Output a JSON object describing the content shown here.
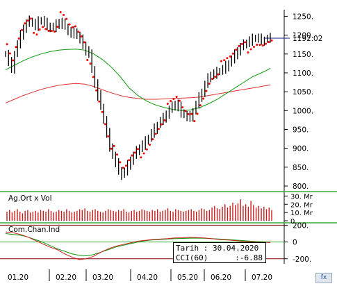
{
  "chart_data": {
    "type": "candlestick",
    "price": {
      "y_ticks": [
        "1250.",
        "1200.",
        "1150.",
        "1100.",
        "1050.",
        "1000.",
        "950.",
        "900.",
        "850.",
        "800."
      ],
      "y_range": [
        800,
        1260
      ],
      "last_price_label": "1192.02",
      "last_price": 1192.02,
      "close_series": [
        1150,
        1128,
        1112,
        1150,
        1175,
        1200,
        1220,
        1230,
        1238,
        1232,
        1225,
        1236,
        1240,
        1232,
        1225,
        1222,
        1218,
        1228,
        1235,
        1230,
        1222,
        1210,
        1205,
        1210,
        1198,
        1188,
        1175,
        1160,
        1148,
        1110,
        1072,
        1040,
        1010,
        975,
        940,
        905,
        880,
        860,
        842,
        830,
        838,
        855,
        870,
        880,
        892,
        902,
        910,
        918,
        928,
        940,
        952,
        962,
        972,
        980,
        992,
        1002,
        1010,
        1018,
        1010,
        995,
        988,
        982,
        985,
        998,
        1015,
        1035,
        1050,
        1068,
        1085,
        1095,
        1098,
        1102,
        1105,
        1110,
        1118,
        1125,
        1135,
        1148,
        1160,
        1168,
        1175,
        1180,
        1186,
        1190,
        1193,
        1190,
        1186,
        1188,
        1190,
        1192
      ],
      "ma_green_series": [
        1108,
        1120,
        1132,
        1142,
        1150,
        1156,
        1160,
        1162,
        1163,
        1160,
        1150,
        1135,
        1115,
        1090,
        1060,
        1040,
        1025,
        1015,
        1008,
        1003,
        1000,
        1002,
        1008,
        1018,
        1030,
        1045,
        1060,
        1075,
        1090,
        1100,
        1112
      ],
      "ma_red_series": [
        1020,
        1030,
        1040,
        1048,
        1056,
        1062,
        1067,
        1070,
        1072,
        1070,
        1064,
        1055,
        1047,
        1040,
        1035,
        1032,
        1030,
        1030,
        1031,
        1032,
        1033,
        1034,
        1036,
        1040,
        1044,
        1048,
        1052,
        1056,
        1060,
        1064,
        1068
      ],
      "sar_dots": "parabolic SAR (red dots)"
    },
    "volume": {
      "label": "Ag.Ort x Vol",
      "y_ticks": [
        "30. Mr",
        "20. Mr",
        "10. Mr",
        "0"
      ],
      "values": [
        11,
        13,
        10,
        12,
        14,
        11,
        9,
        12,
        13,
        10,
        11,
        12,
        10,
        13,
        12,
        11,
        14,
        12,
        10,
        11,
        13,
        12,
        11,
        14,
        12,
        10,
        11,
        12,
        14,
        13,
        15,
        12,
        11,
        13,
        14,
        12,
        11,
        10,
        12,
        14,
        13,
        12,
        11,
        13,
        12,
        14,
        11,
        10,
        12,
        13,
        11,
        12,
        14,
        13,
        12,
        11,
        13,
        12,
        14,
        11,
        12,
        13,
        15,
        12,
        11,
        14,
        13,
        12,
        11,
        12,
        13,
        14,
        12,
        11,
        13,
        15,
        14,
        12,
        13,
        16,
        18,
        15,
        14,
        17,
        20,
        16,
        18,
        22,
        19,
        21,
        26,
        18,
        20,
        17,
        24,
        19,
        16,
        18,
        15,
        17,
        14,
        16,
        13
      ]
    },
    "cci": {
      "label": "Com.Chan.Ind",
      "y_ticks": [
        "200.",
        "0",
        "-200."
      ],
      "y_range": [
        -260,
        220
      ],
      "cci_series": [
        120,
        110,
        90,
        60,
        20,
        -20,
        -60,
        -90,
        -140,
        -180,
        -210,
        -200,
        -170,
        -120,
        -80,
        -50,
        -30,
        -10,
        10,
        20,
        30,
        35,
        40,
        48,
        50,
        55,
        52,
        48,
        40,
        30,
        25,
        18,
        10,
        5,
        0,
        -5,
        -6.88
      ],
      "signal_series": [
        100,
        90,
        80,
        60,
        30,
        0,
        -40,
        -80,
        -110,
        -140,
        -160,
        -165,
        -150,
        -120,
        -90,
        -60,
        -40,
        -20,
        0,
        15,
        25,
        30,
        35,
        40,
        42,
        45,
        46,
        44,
        40,
        36,
        30,
        25,
        18,
        12,
        6,
        2,
        0
      ]
    },
    "x_ticks": [
      "01.20",
      "02.20",
      "03.20",
      "04.20",
      "05.20",
      "06.20",
      "07.20"
    ]
  },
  "tooltip": {
    "date_row": "Tarih : 30.04.2020",
    "cci_label": "CCI(60)",
    "cci_value": ":-6.88"
  },
  "corner_button": {
    "label": "fx"
  },
  "colors": {
    "candles": "#000000",
    "sar": "#ff0000",
    "ma_green": "#0a9a0a",
    "ma_red": "#e03030",
    "last_price_line": "#1a1a8a",
    "volume": "#cc1a1a",
    "cci_line": "#d22020",
    "signal_line": "#0a9a0a",
    "cci_level": "#8a0000",
    "pane_sep": "#3aaa3a"
  }
}
